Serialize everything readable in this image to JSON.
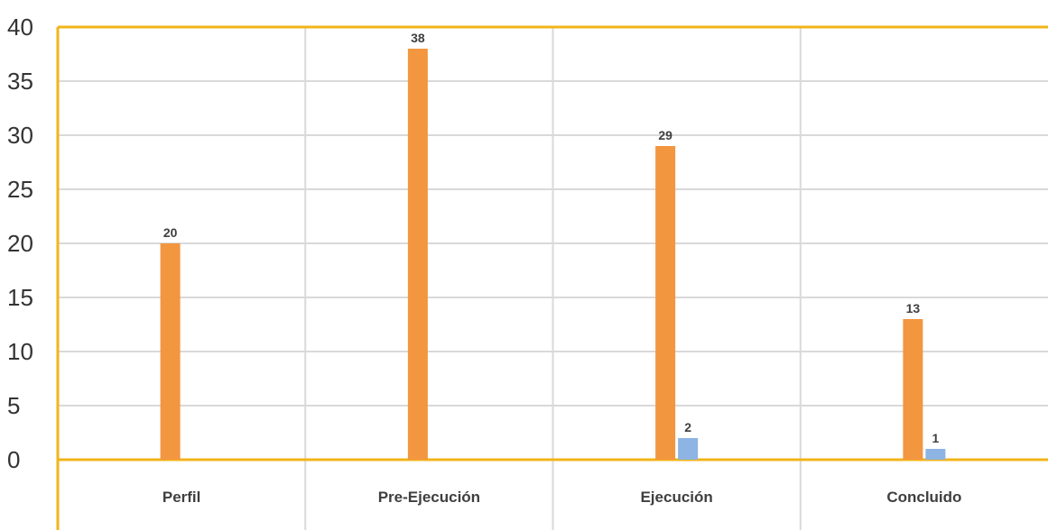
{
  "chart_data": {
    "type": "bar",
    "title": "",
    "xlabel": "",
    "ylabel": "",
    "categories": [
      "Perfil",
      "Pre-Ejecución",
      "Ejecución",
      "Concluido"
    ],
    "series": [
      {
        "values": [
          20,
          38,
          29,
          13
        ],
        "labels": [
          "20",
          "38",
          "29",
          "13"
        ],
        "color": "#F39640"
      },
      {
        "values": [
          null,
          null,
          2,
          1
        ],
        "labels": [
          "",
          "",
          "2",
          "1"
        ],
        "color": "#8DB4E2"
      }
    ],
    "ylim": [
      0,
      40
    ],
    "yticks": [
      0,
      5,
      10,
      15,
      20,
      25,
      30,
      35,
      40
    ],
    "grid": true,
    "legend": "none",
    "colors": {
      "frame": "#F2B41A",
      "grid": "#D9D9D9"
    }
  }
}
